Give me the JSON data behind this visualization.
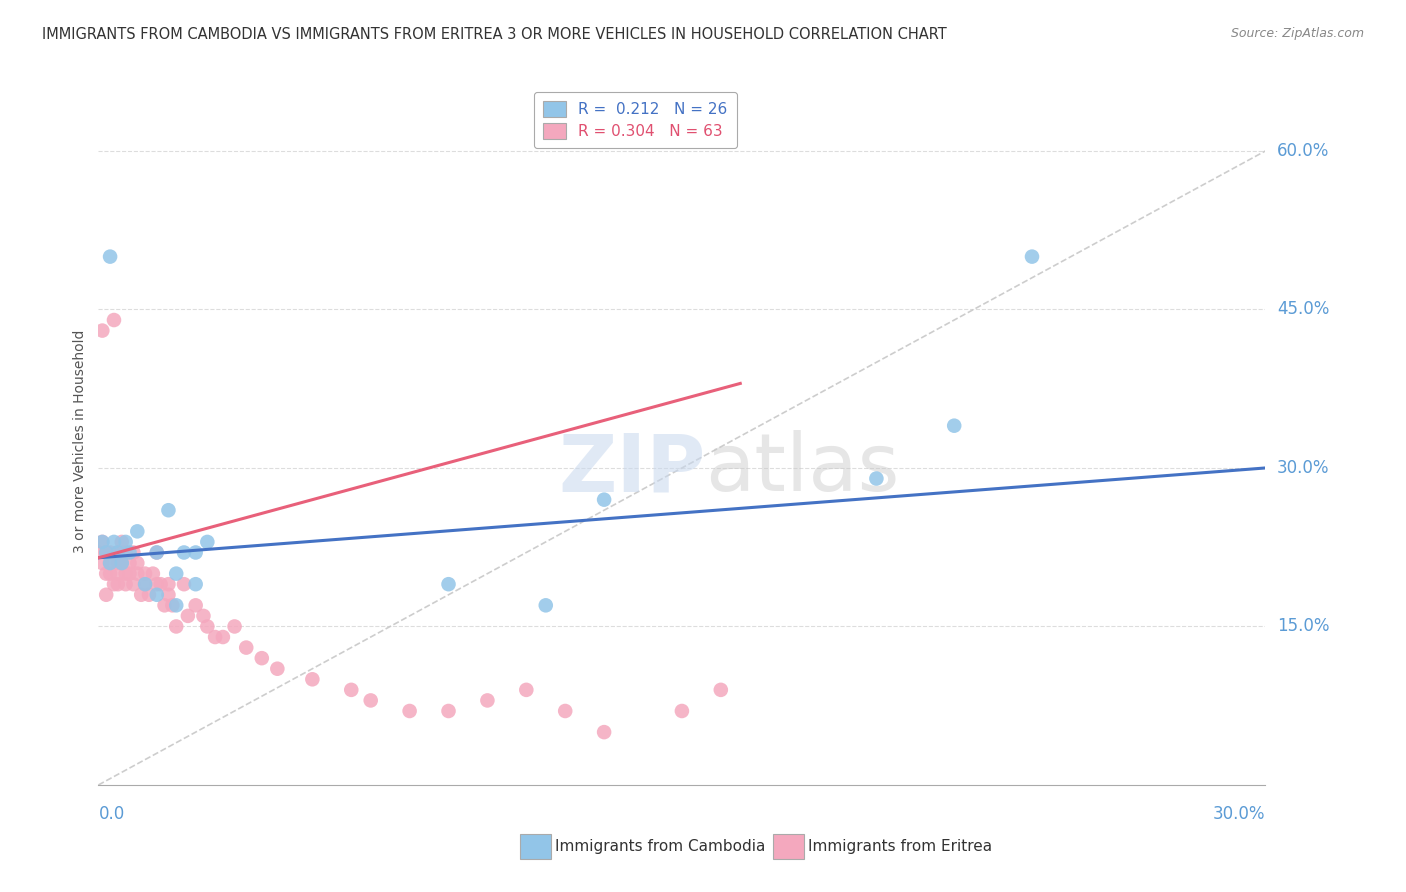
{
  "title": "IMMIGRANTS FROM CAMBODIA VS IMMIGRANTS FROM ERITREA 3 OR MORE VEHICLES IN HOUSEHOLD CORRELATION CHART",
  "source": "Source: ZipAtlas.com",
  "ylabel_label": "3 or more Vehicles in Household",
  "legend_blue_label": "Immigrants from Cambodia",
  "legend_pink_label": "Immigrants from Eritrea",
  "watermark": "ZIPatlas",
  "xlim": [
    0.0,
    0.3
  ],
  "ylim": [
    0.0,
    0.65
  ],
  "blue_color": "#92C5E8",
  "pink_color": "#F4A8BE",
  "blue_line_color": "#4472C4",
  "pink_line_color": "#E8607A",
  "dash_line_color": "#C8C8C8",
  "grid_color": "#DDDDDD",
  "title_color": "#333333",
  "axis_label_color": "#5B9BD5",
  "blue_x": [
    0.001,
    0.002,
    0.003,
    0.004,
    0.005,
    0.006,
    0.007,
    0.008,
    0.01,
    0.012,
    0.015,
    0.015,
    0.018,
    0.02,
    0.02,
    0.022,
    0.025,
    0.025,
    0.028,
    0.09,
    0.115,
    0.13,
    0.2,
    0.22,
    0.24,
    0.003
  ],
  "blue_y": [
    0.23,
    0.22,
    0.21,
    0.23,
    0.22,
    0.21,
    0.23,
    0.22,
    0.24,
    0.19,
    0.18,
    0.22,
    0.26,
    0.2,
    0.17,
    0.22,
    0.22,
    0.19,
    0.23,
    0.19,
    0.17,
    0.27,
    0.29,
    0.34,
    0.5,
    0.5
  ],
  "pink_x": [
    0.0,
    0.001,
    0.001,
    0.001,
    0.002,
    0.002,
    0.002,
    0.003,
    0.003,
    0.003,
    0.004,
    0.004,
    0.005,
    0.005,
    0.005,
    0.005,
    0.006,
    0.006,
    0.006,
    0.007,
    0.007,
    0.007,
    0.008,
    0.008,
    0.009,
    0.009,
    0.01,
    0.01,
    0.011,
    0.012,
    0.012,
    0.013,
    0.014,
    0.015,
    0.015,
    0.016,
    0.017,
    0.018,
    0.018,
    0.019,
    0.02,
    0.022,
    0.023,
    0.025,
    0.027,
    0.028,
    0.03,
    0.032,
    0.035,
    0.038,
    0.042,
    0.046,
    0.055,
    0.065,
    0.07,
    0.08,
    0.09,
    0.1,
    0.11,
    0.12,
    0.13,
    0.15,
    0.16
  ],
  "pink_y": [
    0.22,
    0.23,
    0.21,
    0.43,
    0.22,
    0.2,
    0.18,
    0.22,
    0.21,
    0.2,
    0.19,
    0.44,
    0.22,
    0.21,
    0.2,
    0.19,
    0.22,
    0.21,
    0.23,
    0.22,
    0.2,
    0.19,
    0.21,
    0.2,
    0.22,
    0.19,
    0.21,
    0.2,
    0.18,
    0.2,
    0.19,
    0.18,
    0.2,
    0.22,
    0.19,
    0.19,
    0.17,
    0.18,
    0.19,
    0.17,
    0.15,
    0.19,
    0.16,
    0.17,
    0.16,
    0.15,
    0.14,
    0.14,
    0.15,
    0.13,
    0.12,
    0.11,
    0.1,
    0.09,
    0.08,
    0.07,
    0.07,
    0.08,
    0.09,
    0.07,
    0.05,
    0.07,
    0.09
  ],
  "blue_line_x0": 0.0,
  "blue_line_x1": 0.3,
  "blue_line_y0": 0.215,
  "blue_line_y1": 0.3,
  "pink_line_x0": 0.0,
  "pink_line_x1": 0.165,
  "pink_line_y0": 0.215,
  "pink_line_y1": 0.38,
  "yticks": [
    0.15,
    0.3,
    0.45,
    0.6
  ],
  "ytick_labels": [
    "15.0%",
    "30.0%",
    "45.0%",
    "60.0%"
  ]
}
